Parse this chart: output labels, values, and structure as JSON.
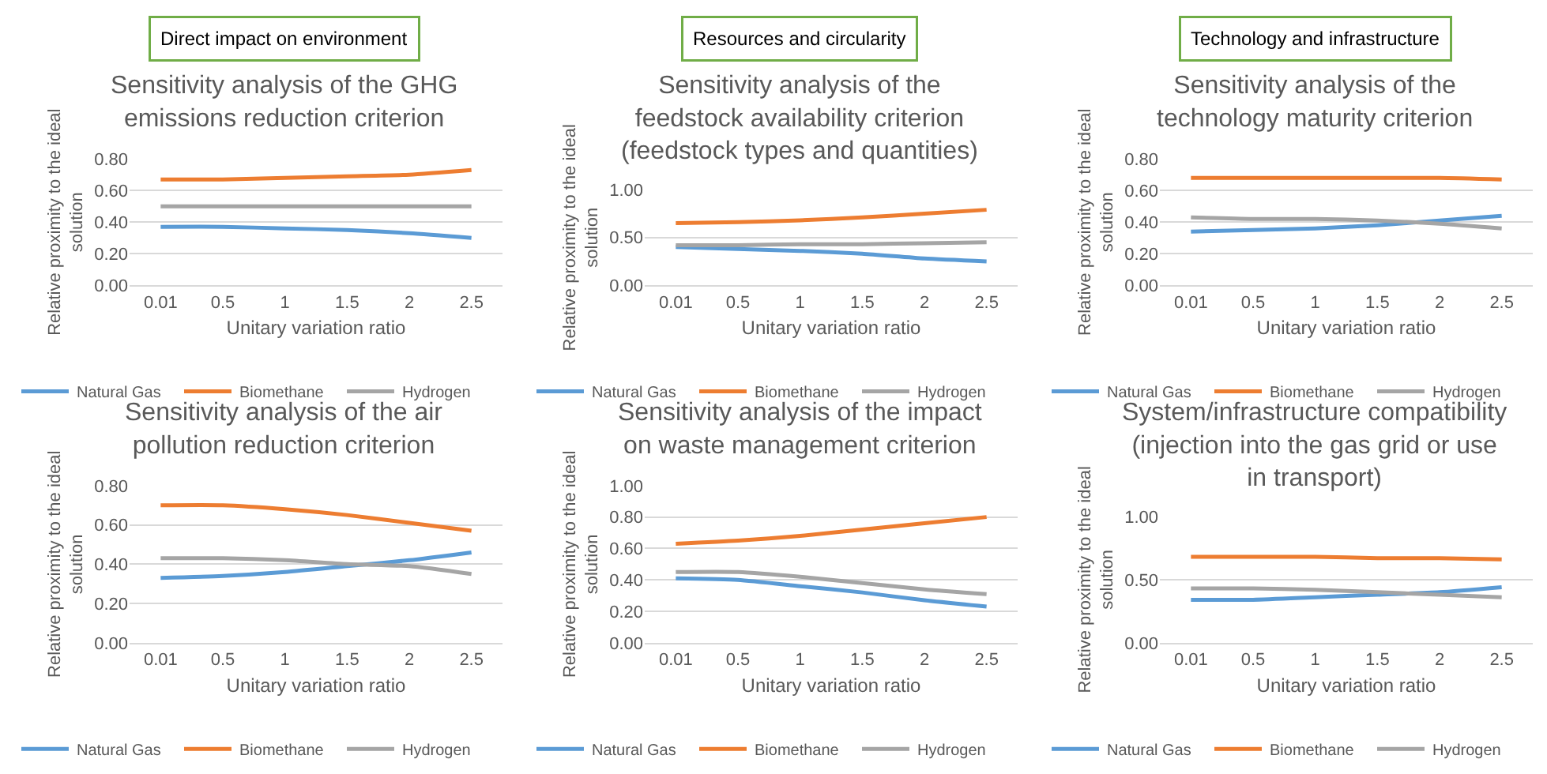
{
  "chart_data": [
    {
      "type": "line",
      "annotations": [
        "Direct impact on environment"
      ],
      "title": "Sensitivity analysis of the GHG emissions reduction criterion",
      "xlabel": "Unitary variation ratio",
      "ylabel": "Relative proximity to the ideal solution",
      "categories": [
        "0.01",
        "0.5",
        "1",
        "1.5",
        "2",
        "2.5"
      ],
      "ylim": [
        0,
        0.8
      ],
      "yticks": [
        {
          "value": 0,
          "label": "0.00"
        },
        {
          "value": 0.2,
          "label": "0.20"
        },
        {
          "value": 0.4,
          "label": "0.40"
        },
        {
          "value": 0.6,
          "label": "0.60"
        },
        {
          "value": 0.8,
          "label": "0.80"
        }
      ],
      "grid": "y",
      "legend": "bottom",
      "marker": "none",
      "line_style": "solid",
      "series": [
        {
          "name": "Natural Gas",
          "color": "#5b9bd5",
          "values": [
            0.37,
            0.37,
            0.36,
            0.35,
            0.33,
            0.3
          ]
        },
        {
          "name": "Biomethane",
          "color": "#ed7d31",
          "values": [
            0.67,
            0.67,
            0.68,
            0.69,
            0.7,
            0.73
          ]
        },
        {
          "name": "Hydrogen",
          "color": "#a5a5a5",
          "values": [
            0.5,
            0.5,
            0.5,
            0.5,
            0.5,
            0.5
          ]
        }
      ]
    },
    {
      "type": "line",
      "annotations": [
        "Resources and circularity"
      ],
      "title": "Sensitivity analysis of the feedstock availability criterion (feedstock types and quantities)",
      "xlabel": "Unitary variation ratio",
      "ylabel": "Relative proximity to the ideal solution",
      "categories": [
        "0.01",
        "0.5",
        "1",
        "1.5",
        "2",
        "2.5"
      ],
      "ylim": [
        0,
        1
      ],
      "yticks": [
        {
          "value": 0,
          "label": "0.00"
        },
        {
          "value": 0.5,
          "label": "0.50"
        },
        {
          "value": 1,
          "label": "1.00"
        }
      ],
      "grid": "y",
      "legend": "bottom",
      "marker": "none",
      "line_style": "solid",
      "series": [
        {
          "name": "Natural Gas",
          "color": "#5b9bd5",
          "values": [
            0.4,
            0.38,
            0.36,
            0.33,
            0.28,
            0.25
          ]
        },
        {
          "name": "Biomethane",
          "color": "#ed7d31",
          "values": [
            0.65,
            0.66,
            0.68,
            0.71,
            0.75,
            0.79
          ]
        },
        {
          "name": "Hydrogen",
          "color": "#a5a5a5",
          "values": [
            0.42,
            0.42,
            0.43,
            0.43,
            0.44,
            0.45
          ]
        }
      ]
    },
    {
      "type": "line",
      "annotations": [
        "Technology and infrastructure"
      ],
      "title": "Sensitivity analysis of the technology maturity criterion",
      "xlabel": "Unitary variation ratio",
      "ylabel": "Relative proximity to the ideal solution",
      "categories": [
        "0.01",
        "0.5",
        "1",
        "1.5",
        "2",
        "2.5"
      ],
      "ylim": [
        0,
        0.8
      ],
      "yticks": [
        {
          "value": 0,
          "label": "0.00"
        },
        {
          "value": 0.2,
          "label": "0.20"
        },
        {
          "value": 0.4,
          "label": "0.40"
        },
        {
          "value": 0.6,
          "label": "0.60"
        },
        {
          "value": 0.8,
          "label": "0.80"
        }
      ],
      "grid": "y",
      "legend": "bottom",
      "marker": "none",
      "line_style": "solid",
      "series": [
        {
          "name": "Natural Gas",
          "color": "#5b9bd5",
          "values": [
            0.34,
            0.35,
            0.36,
            0.38,
            0.41,
            0.44
          ]
        },
        {
          "name": "Biomethane",
          "color": "#ed7d31",
          "values": [
            0.68,
            0.68,
            0.68,
            0.68,
            0.68,
            0.67
          ]
        },
        {
          "name": "Hydrogen",
          "color": "#a5a5a5",
          "values": [
            0.43,
            0.42,
            0.42,
            0.41,
            0.39,
            0.36
          ]
        }
      ]
    },
    {
      "type": "line",
      "title": "Sensitivity analysis of the air pollution reduction criterion",
      "xlabel": "Unitary variation ratio",
      "ylabel": "Relative proximity to the ideal solution",
      "categories": [
        "0.01",
        "0.5",
        "1",
        "1.5",
        "2",
        "2.5"
      ],
      "ylim": [
        0,
        0.8
      ],
      "yticks": [
        {
          "value": 0,
          "label": "0.00"
        },
        {
          "value": 0.2,
          "label": "0.20"
        },
        {
          "value": 0.4,
          "label": "0.40"
        },
        {
          "value": 0.6,
          "label": "0.60"
        },
        {
          "value": 0.8,
          "label": "0.80"
        }
      ],
      "grid": "y",
      "legend": "bottom",
      "marker": "none",
      "line_style": "solid",
      "series": [
        {
          "name": "Natural Gas",
          "color": "#5b9bd5",
          "values": [
            0.33,
            0.34,
            0.36,
            0.39,
            0.42,
            0.46
          ]
        },
        {
          "name": "Biomethane",
          "color": "#ed7d31",
          "values": [
            0.7,
            0.7,
            0.68,
            0.65,
            0.61,
            0.57
          ]
        },
        {
          "name": "Hydrogen",
          "color": "#a5a5a5",
          "values": [
            0.43,
            0.43,
            0.42,
            0.4,
            0.39,
            0.35
          ]
        }
      ]
    },
    {
      "type": "line",
      "title": "Sensitivity analysis of the impact on waste management criterion",
      "xlabel": "Unitary variation ratio",
      "ylabel": "Relative proximity to the ideal solution",
      "categories": [
        "0.01",
        "0.5",
        "1",
        "1.5",
        "2",
        "2.5"
      ],
      "ylim": [
        0,
        1
      ],
      "yticks": [
        {
          "value": 0,
          "label": "0.00"
        },
        {
          "value": 0.2,
          "label": "0.20"
        },
        {
          "value": 0.4,
          "label": "0.40"
        },
        {
          "value": 0.6,
          "label": "0.60"
        },
        {
          "value": 0.8,
          "label": "0.80"
        },
        {
          "value": 1,
          "label": "1.00"
        }
      ],
      "grid": "y",
      "legend": "bottom",
      "marker": "none",
      "line_style": "solid",
      "series": [
        {
          "name": "Natural Gas",
          "color": "#5b9bd5",
          "values": [
            0.41,
            0.4,
            0.36,
            0.32,
            0.27,
            0.23
          ]
        },
        {
          "name": "Biomethane",
          "color": "#ed7d31",
          "values": [
            0.63,
            0.65,
            0.68,
            0.72,
            0.76,
            0.8
          ]
        },
        {
          "name": "Hydrogen",
          "color": "#a5a5a5",
          "values": [
            0.45,
            0.45,
            0.42,
            0.38,
            0.34,
            0.31
          ]
        }
      ]
    },
    {
      "type": "line",
      "title": "System/infrastructure compatibility (injection into the gas grid or use in transport)",
      "xlabel": "Unitary variation ratio",
      "ylabel": "Relative proximity to the ideal solution",
      "categories": [
        "0.01",
        "0.5",
        "1",
        "1.5",
        "2",
        "2.5"
      ],
      "ylim": [
        0,
        1
      ],
      "yticks": [
        {
          "value": 0,
          "label": "0.00"
        },
        {
          "value": 0.5,
          "label": "0.50"
        },
        {
          "value": 1,
          "label": "1.00"
        }
      ],
      "grid": "y",
      "legend": "bottom",
      "marker": "none",
      "line_style": "solid",
      "series": [
        {
          "name": "Natural Gas",
          "color": "#5b9bd5",
          "values": [
            0.34,
            0.34,
            0.36,
            0.38,
            0.4,
            0.44
          ]
        },
        {
          "name": "Biomethane",
          "color": "#ed7d31",
          "values": [
            0.68,
            0.68,
            0.68,
            0.67,
            0.67,
            0.66
          ]
        },
        {
          "name": "Hydrogen",
          "color": "#a5a5a5",
          "values": [
            0.43,
            0.43,
            0.42,
            0.4,
            0.38,
            0.36
          ]
        }
      ]
    }
  ]
}
